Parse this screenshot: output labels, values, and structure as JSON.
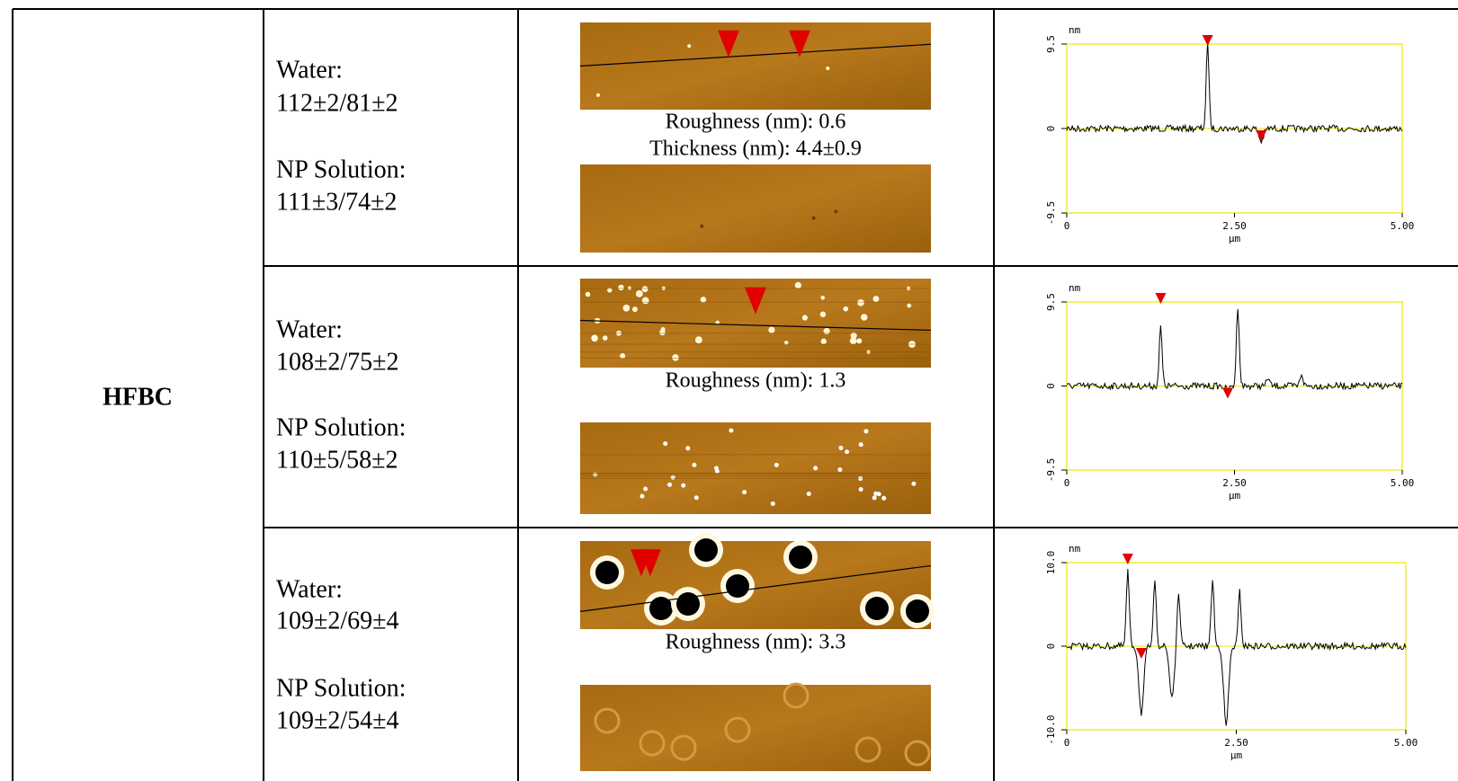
{
  "table": {
    "group_label": "HFBC",
    "rows": [
      {
        "water_label": "Water:",
        "water_value": "112±2/81±2",
        "np_label": "NP Solution:",
        "np_value": "111±3/74±2",
        "captions": [
          "Roughness (nm): 0.6",
          "Thickness (nm): 4.4±0.9"
        ],
        "profile": {
          "y_unit": "nm",
          "yticks": [
            "9.5",
            "0",
            "-9.5"
          ],
          "xticks": [
            "0",
            "2.50",
            "5.00"
          ],
          "x_unit": "μm"
        }
      },
      {
        "water_label": "Water:",
        "water_value": "108±2/75±2",
        "np_label": "NP Solution:",
        "np_value": "110±5/58±2",
        "captions": [
          "Roughness (nm): 1.3"
        ],
        "profile": {
          "y_unit": "nm",
          "yticks": [
            "9.5",
            "0",
            "-9.5"
          ],
          "xticks": [
            "0",
            "2.50",
            "5.00"
          ],
          "x_unit": "μm"
        }
      },
      {
        "water_label": "Water:",
        "water_value": "109±2/69±4",
        "np_label": "NP Solution:",
        "np_value": "109±2/54±4",
        "captions": [
          "Roughness (nm): 3.3"
        ],
        "profile": {
          "y_unit": "nm",
          "yticks": [
            "10.0",
            "0",
            "-10.0"
          ],
          "xticks": [
            "0",
            "2.50",
            "5.00"
          ],
          "x_unit": "μm"
        }
      }
    ]
  }
}
